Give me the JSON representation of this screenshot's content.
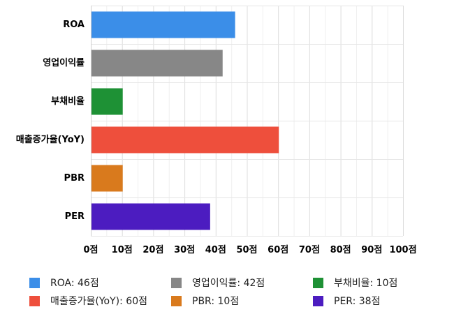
{
  "chart_data": {
    "type": "bar",
    "orientation": "horizontal",
    "categories": [
      "ROA",
      "영업이익률",
      "부채비율",
      "매출증가율(YoY)",
      "PBR",
      "PER"
    ],
    "values": [
      46,
      42,
      10,
      60,
      10,
      38
    ],
    "colors": [
      "#3b8ee8",
      "#878787",
      "#1e9135",
      "#ee4f3c",
      "#d97a1d",
      "#4c1cc0"
    ],
    "xlim": [
      0,
      100
    ],
    "x_ticks": [
      0,
      10,
      20,
      30,
      40,
      50,
      60,
      70,
      80,
      90,
      100
    ],
    "tick_suffix": "점",
    "grid": true,
    "legend_position": "bottom",
    "legend_rows": [
      [
        0,
        2,
        4
      ],
      [
        3,
        4,
        5
      ]
    ],
    "legend": [
      {
        "label": "ROA: 46점",
        "color": "#3b8ee8"
      },
      {
        "label": "영업이익률: 42점",
        "color": "#878787"
      },
      {
        "label": "부채비율: 10점",
        "color": "#1e9135"
      },
      {
        "label": "매출증가율(YoY): 60점",
        "color": "#ee4f3c"
      },
      {
        "label": "PBR: 10점",
        "color": "#d97a1d"
      },
      {
        "label": "PER: 38점",
        "color": "#4c1cc0"
      }
    ]
  }
}
